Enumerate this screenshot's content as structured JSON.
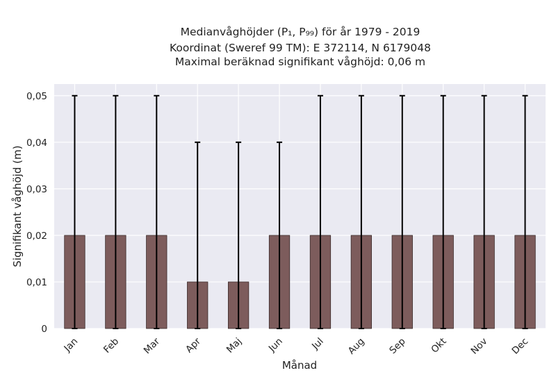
{
  "chart_data": {
    "type": "bar",
    "title_lines": [
      "Medianvåghöjder (P₁, P₉₉) för år 1979 - 2019",
      "Koordinat (Sweref 99 TM): E 372114, N 6179048",
      "Maximal beräknad signifikant våghöjd: 0,06 m"
    ],
    "xlabel": "Månad",
    "ylabel": "Signifikant våghöjd (m)",
    "categories": [
      "Jan",
      "Feb",
      "Mar",
      "Apr",
      "Maj",
      "Jun",
      "Jul",
      "Aug",
      "Sep",
      "Okt",
      "Nov",
      "Dec"
    ],
    "values": [
      0.02,
      0.02,
      0.02,
      0.01,
      0.01,
      0.02,
      0.02,
      0.02,
      0.02,
      0.02,
      0.02,
      0.02
    ],
    "p1": [
      0,
      0,
      0,
      0,
      0,
      0,
      0,
      0,
      0,
      0,
      0,
      0
    ],
    "p99": [
      0.05,
      0.05,
      0.05,
      0.04,
      0.04,
      0.04,
      0.05,
      0.05,
      0.05,
      0.05,
      0.05,
      0.05
    ],
    "ylim": [
      0,
      0.0525
    ],
    "yticks": [
      0,
      0.01,
      0.02,
      0.03,
      0.04,
      0.05
    ],
    "ytick_labels": [
      "0",
      "0,01",
      "0,02",
      "0,03",
      "0,04",
      "0,05"
    ],
    "grid": true,
    "colors": {
      "bar": "#7d5c5c",
      "bar_edge": "#3a2a2a",
      "error": "#000000",
      "plot_background": "#eaeaf2",
      "grid": "#ffffff"
    }
  }
}
